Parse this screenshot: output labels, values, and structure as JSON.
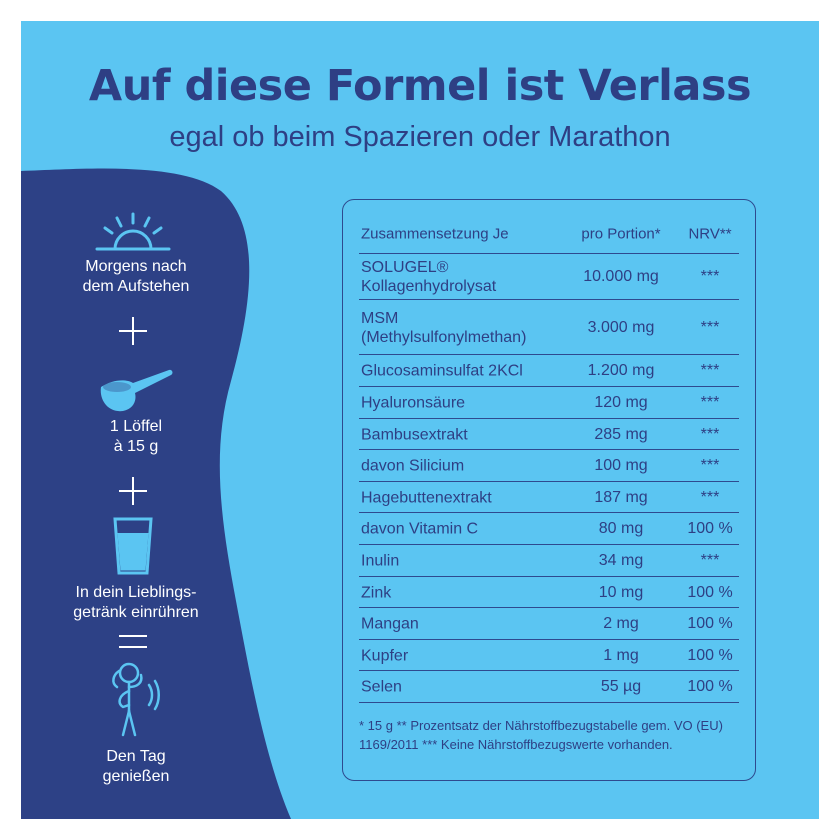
{
  "colors": {
    "background": "#5bc5f2",
    "navy": "#2e3f84",
    "blob": "#2d4186",
    "white": "#ffffff"
  },
  "header": {
    "title": "Auf diese Formel ist Verlass",
    "subtitle": "egal ob beim Spazieren oder Marathon"
  },
  "steps": [
    {
      "icon": "sunrise-icon",
      "line1": "Morgens nach",
      "line2": "dem Aufstehen"
    },
    {
      "icon": "plus-icon"
    },
    {
      "icon": "scoop-icon",
      "line1": "1 Löffel",
      "line2": "à 15 g"
    },
    {
      "icon": "plus-icon"
    },
    {
      "icon": "glass-icon",
      "line1": "In dein Lieblings-",
      "line2": "getränk einrühren"
    },
    {
      "icon": "equals-icon"
    },
    {
      "icon": "stretching-person-icon",
      "line1": "Den Tag",
      "line2": "genießen"
    }
  ],
  "table": {
    "headers": {
      "ingredient": "Zusammensetzung Je",
      "portion": "pro Portion*",
      "nrv": "NRV**"
    },
    "rows": [
      {
        "name": "SOLUGEL®",
        "name2": "Kollagenhydrolysat",
        "amount": "10.000 mg",
        "nrv": "***"
      },
      {
        "name": "MSM",
        "name2": "(Methylsulfonylmethan)",
        "amount": "3.000 mg",
        "nrv": "***"
      },
      {
        "name": "Glucosaminsulfat 2KCl",
        "amount": "1.200 mg",
        "nrv": "***"
      },
      {
        "name": "Hyaluronsäure",
        "amount": "120 mg",
        "nrv": "***"
      },
      {
        "name": "Bambusextrakt",
        "amount": "285 mg",
        "nrv": "***"
      },
      {
        "name": "davon Silicium",
        "amount": "100 mg",
        "nrv": "***"
      },
      {
        "name": "Hagebuttenextrakt",
        "amount": "187 mg",
        "nrv": "***"
      },
      {
        "name": "davon Vitamin C",
        "amount": "80 mg",
        "nrv": "100 %"
      },
      {
        "name": "Inulin",
        "amount": "34 mg",
        "nrv": "***"
      },
      {
        "name": "Zink",
        "amount": "10 mg",
        "nrv": "100 %"
      },
      {
        "name": "Mangan",
        "amount": "2 mg",
        "nrv": "100 %"
      },
      {
        "name": "Kupfer",
        "amount": "1 mg",
        "nrv": "100 %"
      },
      {
        "name": "Selen",
        "amount": "55 µg",
        "nrv": "100 %"
      }
    ],
    "footnote": "* 15 g ** Prozentsatz der Nährstoffbezugstabelle gem. VO (EU) 1169/2011 *** Keine Nährstoffbezugswerte vorhanden."
  }
}
